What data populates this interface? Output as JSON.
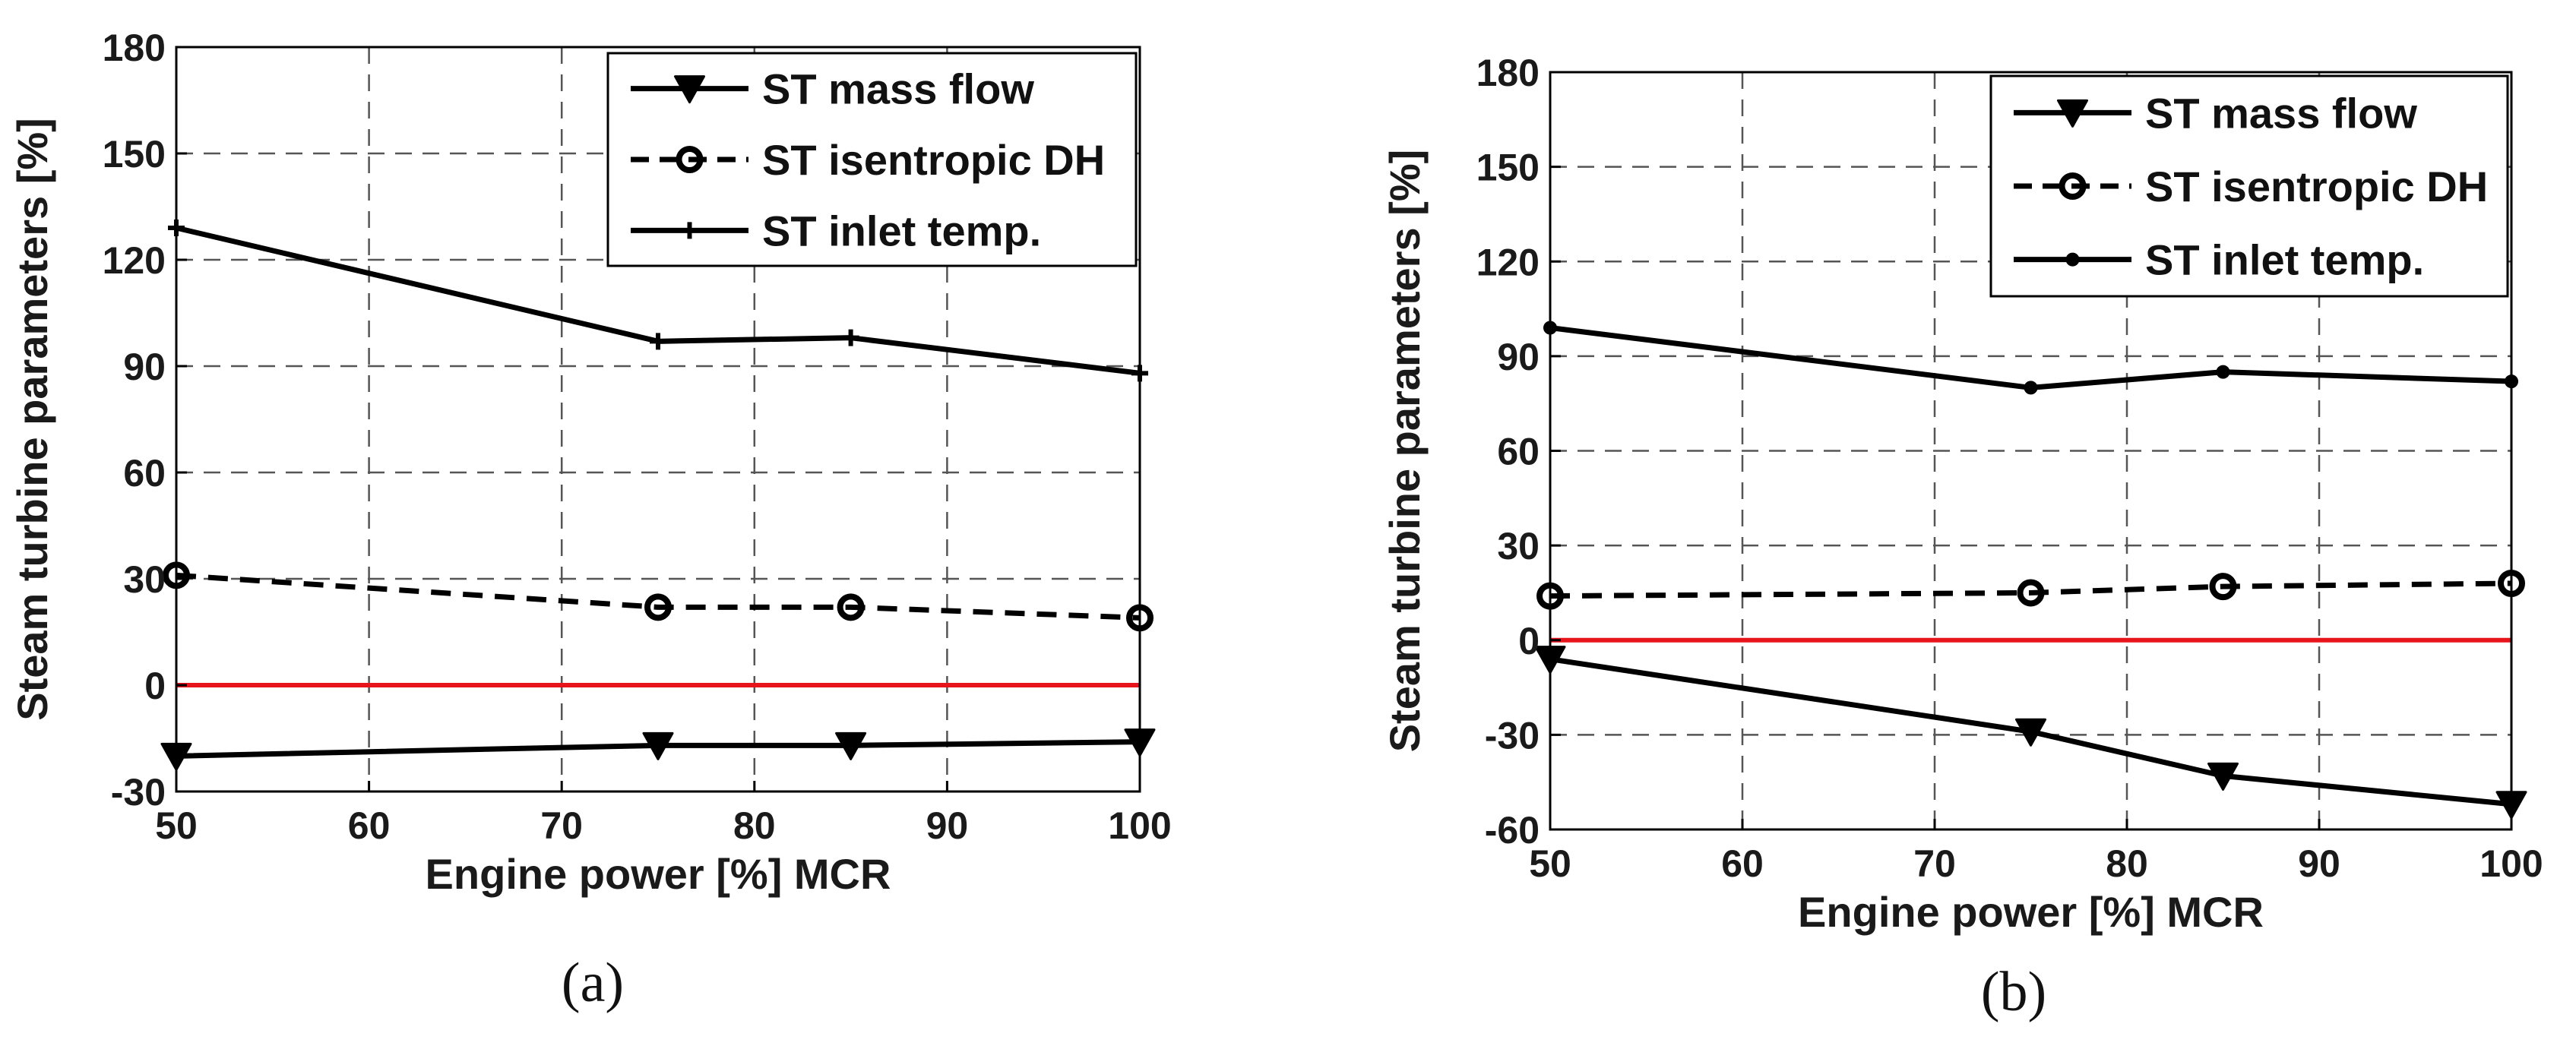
{
  "chart_data": [
    {
      "id": "a",
      "type": "line",
      "caption": "(a)",
      "xlabel": "Engine power [%] MCR",
      "ylabel": "Steam turbine parameters [%]",
      "xlim": [
        50,
        100
      ],
      "ylim": [
        -30,
        180
      ],
      "xticks": [
        50,
        60,
        70,
        80,
        90,
        100
      ],
      "yticks": [
        -30,
        0,
        30,
        60,
        90,
        120,
        150,
        180
      ],
      "grid": true,
      "legend_position": "top-right",
      "reference_line": {
        "y": 0,
        "color": "#e8141b"
      },
      "series": [
        {
          "name": "ST mass flow",
          "marker": "triangle-down",
          "line": "solid",
          "x": [
            50,
            75,
            85,
            100
          ],
          "y": [
            -20,
            -17,
            -17,
            -16
          ]
        },
        {
          "name": "ST isentropic DH",
          "marker": "circle",
          "line": "dashed",
          "x": [
            50,
            75,
            85,
            100
          ],
          "y": [
            31,
            22,
            22,
            19
          ]
        },
        {
          "name": "ST inlet temp.",
          "marker": "plus",
          "line": "solid",
          "x": [
            50,
            75,
            85,
            100
          ],
          "y": [
            129,
            97,
            98,
            88
          ]
        }
      ]
    },
    {
      "id": "b",
      "type": "line",
      "caption": "(b)",
      "xlabel": "Engine power [%] MCR",
      "ylabel": "Steam turbine parameters [%]",
      "xlim": [
        50,
        100
      ],
      "ylim": [
        -60,
        180
      ],
      "xticks": [
        50,
        60,
        70,
        80,
        90,
        100
      ],
      "yticks": [
        -60,
        -30,
        0,
        30,
        60,
        90,
        120,
        150,
        180
      ],
      "grid": true,
      "legend_position": "top-right",
      "reference_line": {
        "y": 0,
        "color": "#e8141b"
      },
      "series": [
        {
          "name": "ST mass flow",
          "marker": "triangle-down",
          "line": "solid",
          "x": [
            50,
            75,
            85,
            100
          ],
          "y": [
            -6,
            -29,
            -43,
            -52
          ]
        },
        {
          "name": "ST isentropic DH",
          "marker": "circle",
          "line": "dashed",
          "x": [
            50,
            75,
            85,
            100
          ],
          "y": [
            14,
            15,
            17,
            18
          ]
        },
        {
          "name": "ST inlet temp.",
          "marker": "dot",
          "line": "solid",
          "x": [
            50,
            75,
            85,
            100
          ],
          "y": [
            99,
            80,
            85,
            82
          ]
        }
      ]
    }
  ]
}
